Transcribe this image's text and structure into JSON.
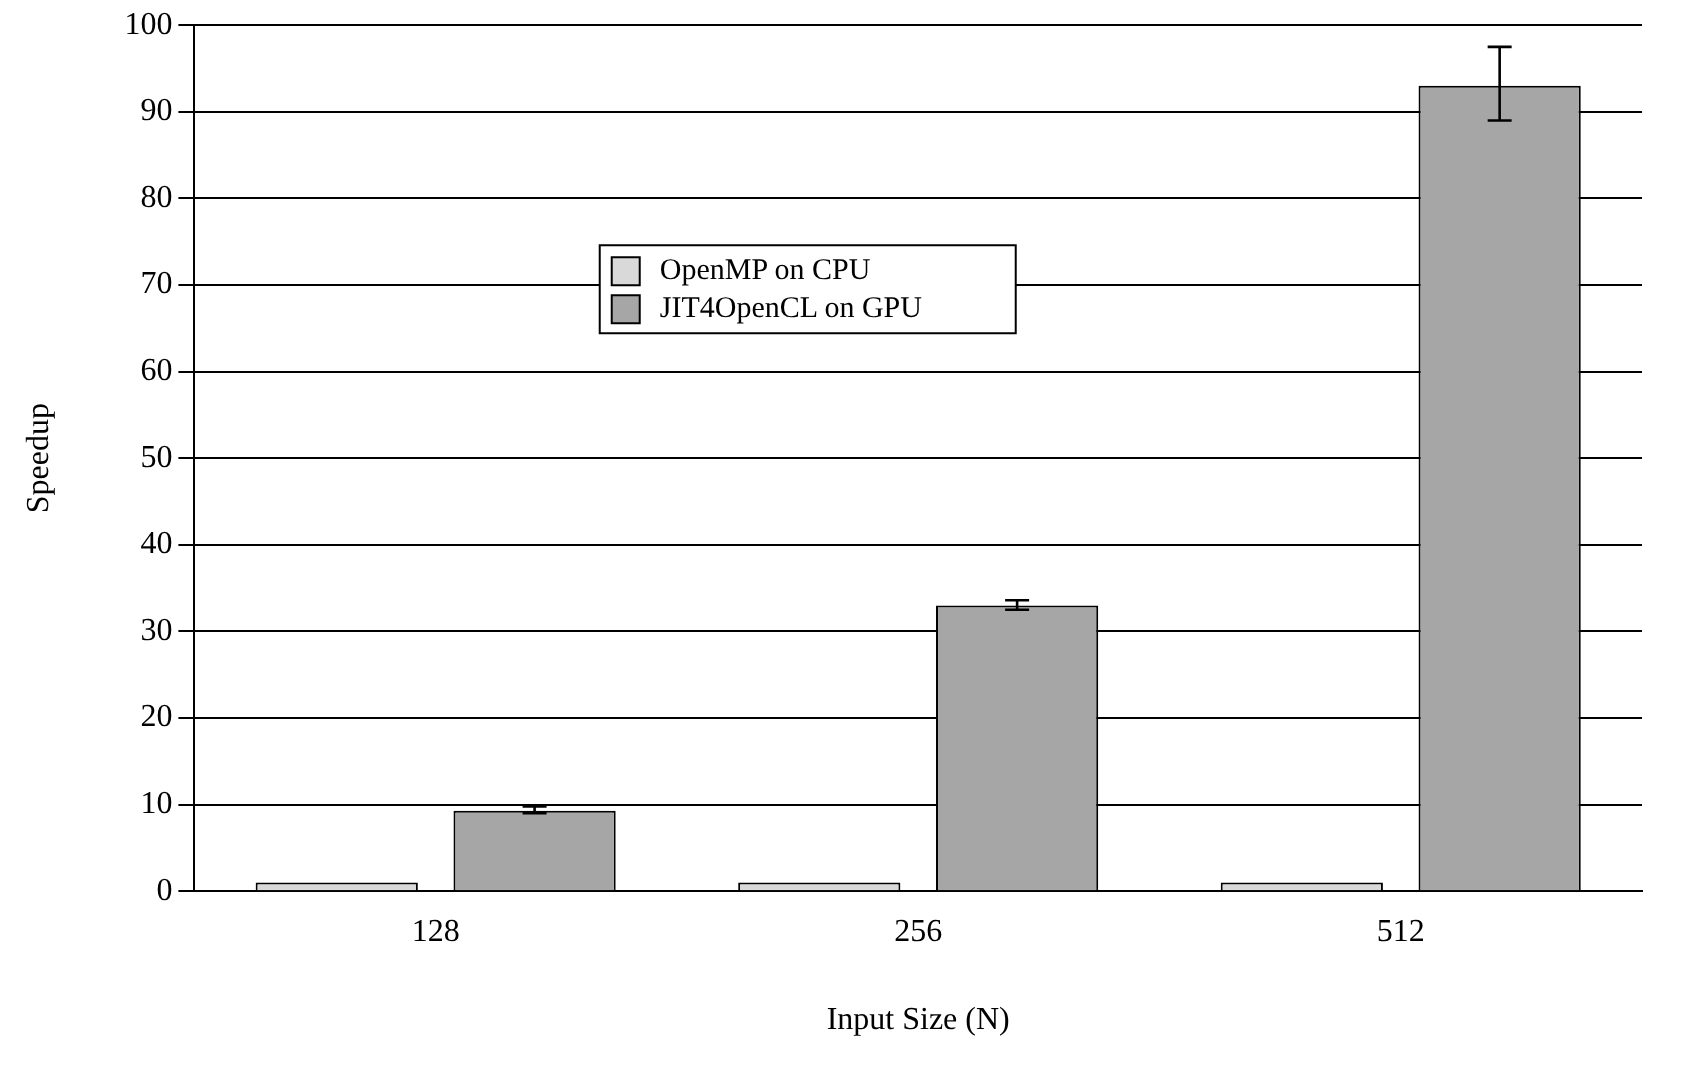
{
  "chart_data": {
    "type": "bar",
    "xlabel": "Input Size (N)",
    "ylabel": "Speedup",
    "categories": [
      "128",
      "256",
      "512"
    ],
    "series": [
      {
        "name": "OpenMP on CPU",
        "color": "#d9d9d9",
        "values": [
          1,
          1,
          1
        ]
      },
      {
        "name": "JIT4OpenCL on GPU",
        "color": "#a6a6a6",
        "values": [
          9.3,
          33,
          93
        ],
        "errors": [
          [
            9,
            9.8
          ],
          [
            32.5,
            33.6
          ],
          [
            89,
            97.5
          ]
        ]
      }
    ],
    "ylim": [
      0,
      100
    ],
    "yticks": [
      0,
      10,
      20,
      30,
      40,
      50,
      60,
      70,
      80,
      90,
      100
    ],
    "grid": "y",
    "legend": "top left"
  }
}
